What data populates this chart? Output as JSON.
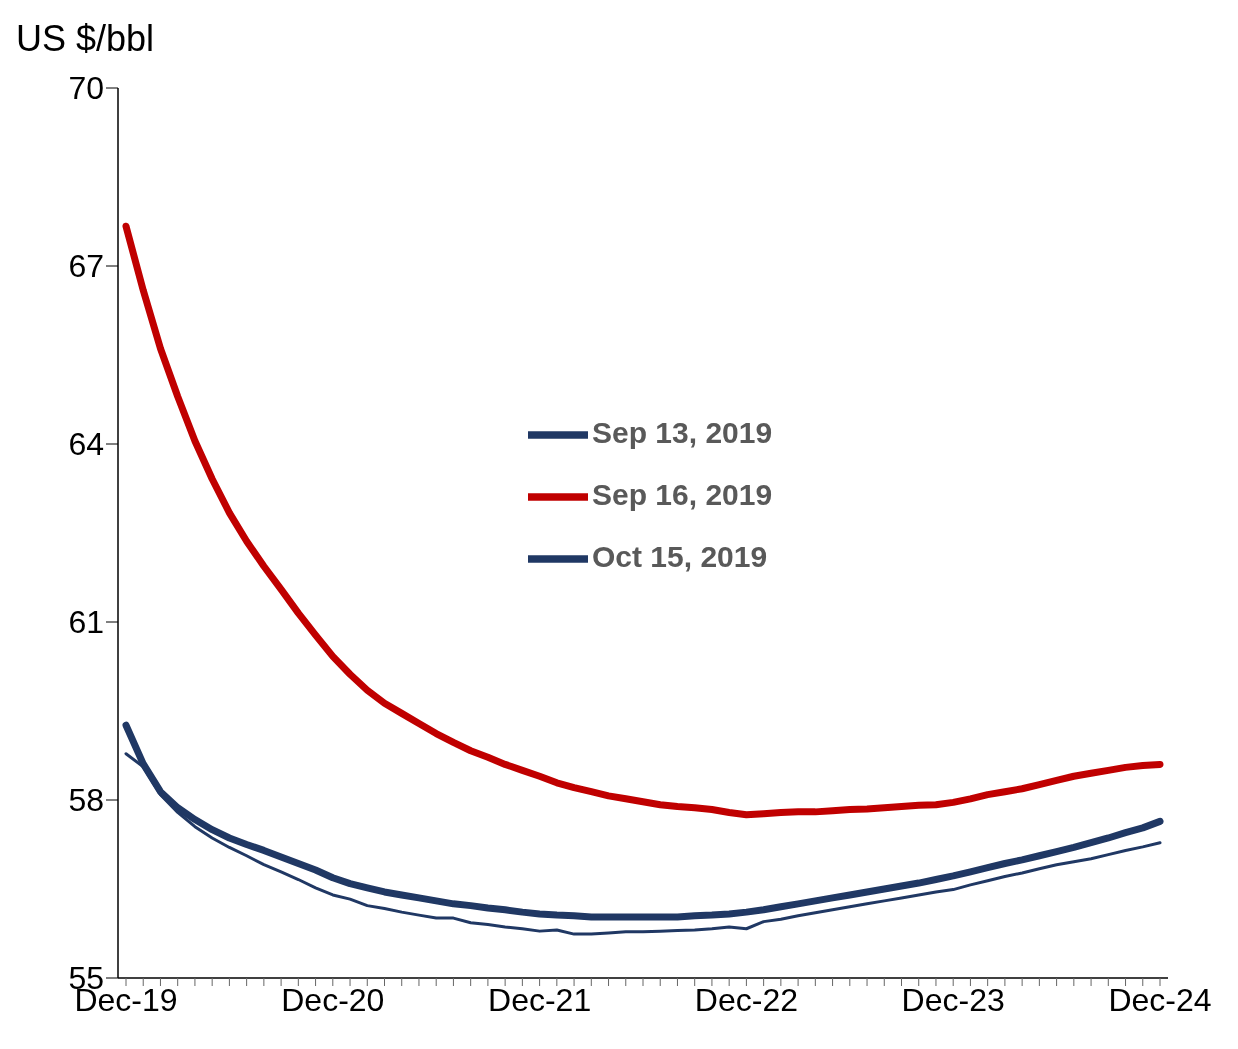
{
  "chart_data": {
    "type": "line",
    "ylabel": "US $/bbl",
    "categories": [
      "Dec-19",
      null,
      null,
      null,
      null,
      null,
      null,
      null,
      null,
      null,
      null,
      null,
      "Dec-20",
      null,
      null,
      null,
      null,
      null,
      null,
      null,
      null,
      null,
      null,
      null,
      "Dec-21",
      null,
      null,
      null,
      null,
      null,
      null,
      null,
      null,
      null,
      null,
      null,
      "Dec-22",
      null,
      null,
      null,
      null,
      null,
      null,
      null,
      null,
      null,
      null,
      null,
      "Dec-23",
      null,
      null,
      null,
      null,
      null,
      null,
      null,
      null,
      null,
      null,
      null,
      "Dec-24"
    ],
    "series": [
      {
        "name": "Sep 13, 2019",
        "color": "#203864",
        "values": [
          59.26,
          58.61,
          58.14,
          57.87,
          57.67,
          57.5,
          57.36,
          57.25,
          57.15,
          57.04,
          56.93,
          56.82,
          56.69,
          56.59,
          56.52,
          56.45,
          56.4,
          56.35,
          56.3,
          56.25,
          56.22,
          56.18,
          56.15,
          56.11,
          56.08,
          56.06,
          56.05,
          56.03,
          56.03,
          56.03,
          56.03,
          56.03,
          56.03,
          56.05,
          56.06,
          56.08,
          56.11,
          56.15,
          56.2,
          56.25,
          56.3,
          56.35,
          56.4,
          56.45,
          56.5,
          56.55,
          56.6,
          56.66,
          56.72,
          56.79,
          56.86,
          56.93,
          56.99,
          57.06,
          57.13,
          57.2,
          57.28,
          57.36,
          57.45,
          57.53,
          57.64
        ]
      },
      {
        "name": "Sep 16, 2019",
        "color": "#c00000",
        "values": [
          67.67,
          66.59,
          65.61,
          64.8,
          64.05,
          63.41,
          62.84,
          62.36,
          61.94,
          61.55,
          61.15,
          60.78,
          60.42,
          60.12,
          59.85,
          59.63,
          59.46,
          59.29,
          59.12,
          58.97,
          58.83,
          58.72,
          58.6,
          58.5,
          58.4,
          58.29,
          58.21,
          58.14,
          58.07,
          58.02,
          57.97,
          57.92,
          57.89,
          57.87,
          57.84,
          57.79,
          57.75,
          57.77,
          57.79,
          57.8,
          57.8,
          57.82,
          57.84,
          57.85,
          57.87,
          57.89,
          57.91,
          57.92,
          57.96,
          58.02,
          58.09,
          58.14,
          58.19,
          58.26,
          58.33,
          58.4,
          58.45,
          58.5,
          58.55,
          58.58,
          58.6
        ]
      },
      {
        "name": "Oct 15, 2019",
        "color": "#203864",
        "values": [
          58.78,
          58.56,
          58.09,
          57.79,
          57.55,
          57.36,
          57.2,
          57.06,
          56.91,
          56.79,
          56.66,
          56.52,
          56.4,
          56.33,
          56.22,
          56.17,
          56.11,
          56.06,
          56.01,
          56.01,
          55.93,
          55.9,
          55.86,
          55.83,
          55.79,
          55.81,
          55.74,
          55.74,
          55.76,
          55.78,
          55.78,
          55.79,
          55.8,
          55.81,
          55.83,
          55.86,
          55.83,
          55.95,
          55.99,
          56.05,
          56.1,
          56.15,
          56.2,
          56.25,
          56.3,
          56.35,
          56.4,
          56.45,
          56.49,
          56.57,
          56.64,
          56.71,
          56.77,
          56.84,
          56.91,
          56.96,
          57.01,
          57.08,
          57.15,
          57.21,
          57.28
        ]
      }
    ],
    "ylim": [
      55,
      70
    ],
    "yticks": [
      55,
      58,
      61,
      64,
      67,
      70
    ],
    "grid": false,
    "legend": "center",
    "marker": "none",
    "line_style": "solid"
  }
}
